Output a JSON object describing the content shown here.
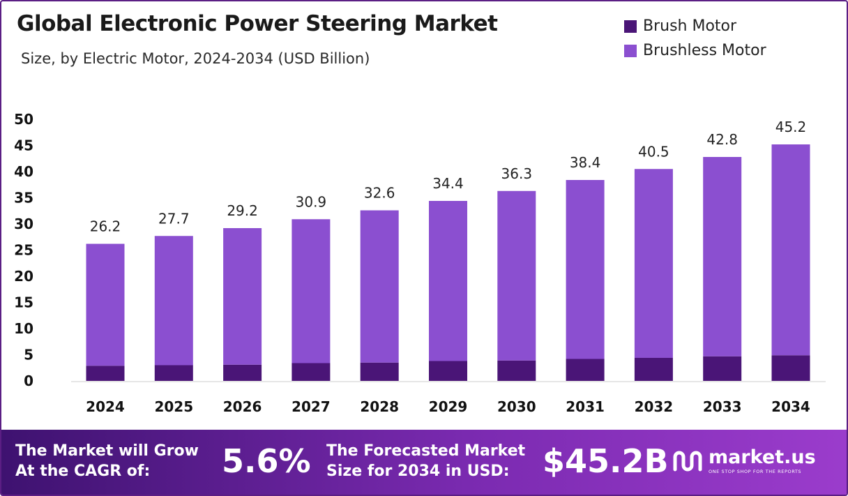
{
  "header": {
    "title": "Global Electronic Power Steering Market",
    "subtitle": "Size, by Electric Motor, 2024-2034 (USD Billion)"
  },
  "colors": {
    "brush": "#4a1577",
    "brushless": "#8b4fd0",
    "frame": "#5b1e84",
    "axis": "#cccccc"
  },
  "chart_data": {
    "type": "bar",
    "stacked": true,
    "categories": [
      "2024",
      "2025",
      "2026",
      "2027",
      "2028",
      "2029",
      "2030",
      "2031",
      "2032",
      "2033",
      "2034"
    ],
    "series": [
      {
        "name": "Brush Motor",
        "values": [
          2.9,
          3.0,
          3.1,
          3.4,
          3.5,
          3.8,
          3.9,
          4.2,
          4.4,
          4.7,
          4.9
        ]
      },
      {
        "name": "Brushless Motor",
        "values": [
          23.3,
          24.7,
          26.1,
          27.5,
          29.1,
          30.6,
          32.4,
          34.2,
          36.1,
          38.1,
          40.3
        ]
      }
    ],
    "totals": [
      26.2,
      27.7,
      29.2,
      30.9,
      32.6,
      34.4,
      36.3,
      38.4,
      40.5,
      42.8,
      45.2
    ],
    "total_labels": [
      "26.2",
      "27.7",
      "29.2",
      "30.9",
      "32.6",
      "34.4",
      "36.3",
      "38.4",
      "40.5",
      "42.8",
      "45.2"
    ],
    "yticks": [
      "0",
      "5",
      "10",
      "15",
      "20",
      "25",
      "30",
      "35",
      "40",
      "45",
      "50"
    ],
    "ylim": [
      0,
      50
    ],
    "grid": false,
    "legend": "top-right"
  },
  "footer": {
    "cagr_text_line1": "The Market will Grow",
    "cagr_text_line2": "At the CAGR of:",
    "cagr_value": "5.6%",
    "forecast_text_line1": "The Forecasted Market",
    "forecast_text_line2": "Size for 2034 in USD:",
    "forecast_value": "$45.2B",
    "brand_name": "market.us",
    "brand_tagline": "ONE STOP SHOP FOR THE REPORTS"
  }
}
